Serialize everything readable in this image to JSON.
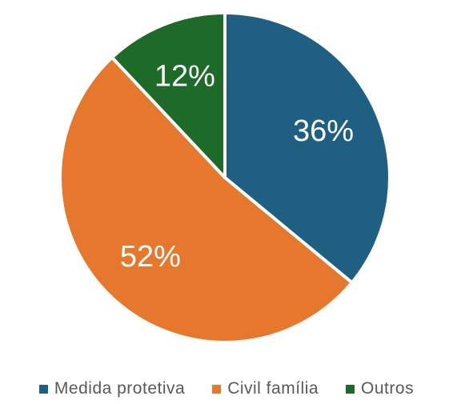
{
  "chart_data": {
    "type": "pie",
    "slices": [
      {
        "label": "Medida protetiva",
        "value": 36,
        "display": "36%",
        "color": "#1F5F82"
      },
      {
        "label": "Civil família",
        "value": 52,
        "display": "52%",
        "color": "#E6782E"
      },
      {
        "label": "Outros",
        "value": 12,
        "display": "12%",
        "color": "#1E6A28"
      }
    ],
    "legend_position": "bottom"
  }
}
